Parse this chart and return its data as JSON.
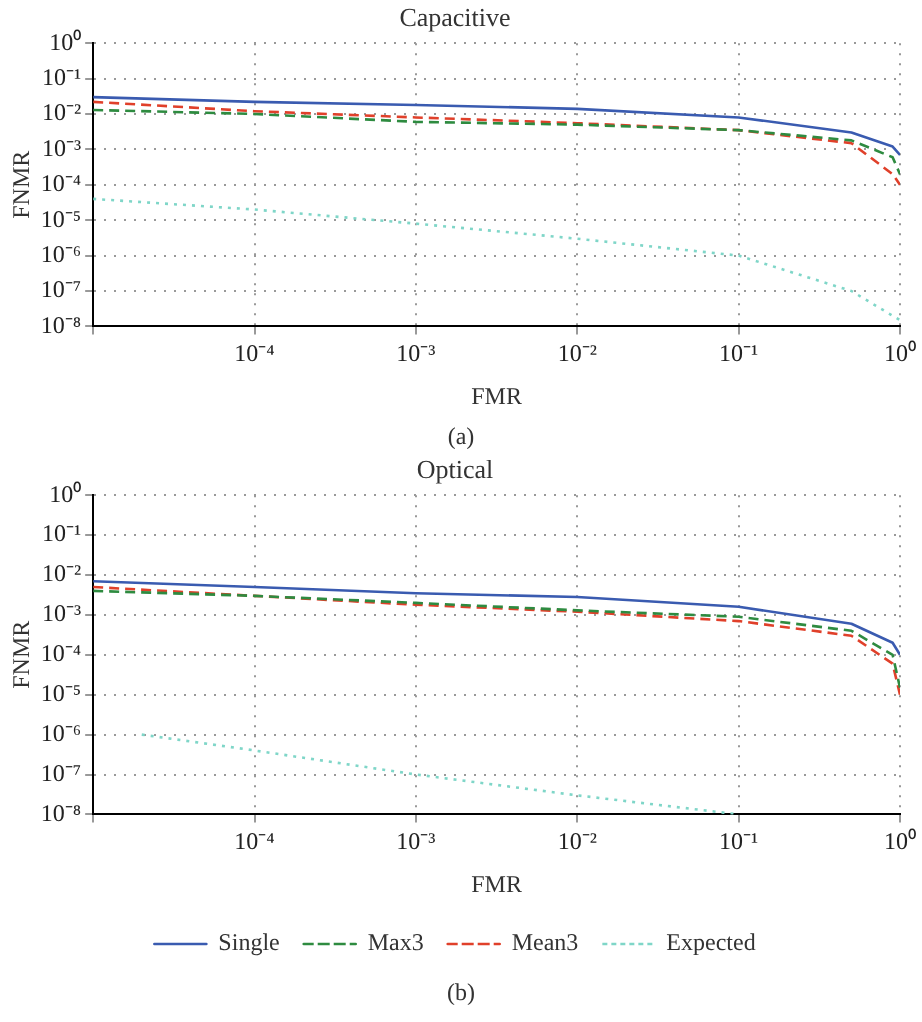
{
  "chart_data": [
    {
      "type": "line",
      "title": "Capacitive",
      "xlabel": "FMR",
      "ylabel": "FNMR",
      "log": "xy",
      "grid": true,
      "legend": false,
      "marker": "none",
      "annotations": [
        "(a)"
      ],
      "xlim": [
        1e-05,
        1
      ],
      "xticks": [
        {
          "value": 1e-05,
          "label": null
        },
        {
          "value": 0.0001,
          "label": "10⁻⁴"
        },
        {
          "value": 0.001,
          "label": "10⁻³"
        },
        {
          "value": 0.01,
          "label": "10⁻²"
        },
        {
          "value": 0.1,
          "label": "10⁻¹"
        },
        {
          "value": 1,
          "label": "10⁰"
        }
      ],
      "ylim": [
        1e-08,
        1
      ],
      "yticks": [
        {
          "value": 1e-08,
          "label": "10⁻⁸"
        },
        {
          "value": 1e-07,
          "label": "10⁻⁷"
        },
        {
          "value": 1e-06,
          "label": "10⁻⁶"
        },
        {
          "value": 1e-05,
          "label": "10⁻⁵"
        },
        {
          "value": 0.0001,
          "label": "10⁻⁴"
        },
        {
          "value": 0.001,
          "label": "10⁻³"
        },
        {
          "value": 0.01,
          "label": "10⁻²"
        },
        {
          "value": 0.1,
          "label": "10⁻¹"
        },
        {
          "value": 1,
          "label": "10⁰"
        }
      ],
      "series": [
        {
          "color": "#3a5bb0",
          "line_style": "solid",
          "x": [
            1e-05,
            0.0001,
            0.001,
            0.01,
            0.1,
            0.5,
            0.9,
            1
          ],
          "values": [
            0.03,
            0.022,
            0.018,
            0.014,
            0.008,
            0.003,
            0.0012,
            0.0007
          ]
        },
        {
          "color": "#2e8b40",
          "line_style": "dashed",
          "x": [
            1e-05,
            0.0001,
            0.001,
            0.01,
            0.1,
            0.5,
            0.9,
            1
          ],
          "values": [
            0.013,
            0.01,
            0.006,
            0.005,
            0.0035,
            0.0018,
            0.0006,
            0.0002
          ]
        },
        {
          "color": "#e0402a",
          "line_style": "dashed",
          "x": [
            1e-05,
            0.0001,
            0.001,
            0.01,
            0.1,
            0.5,
            0.9,
            1
          ],
          "values": [
            0.022,
            0.012,
            0.008,
            0.0055,
            0.0035,
            0.0015,
            0.0002,
            0.0001
          ]
        },
        {
          "color": "#7fd6c8",
          "line_style": "dotted",
          "x": [
            1e-05,
            0.0001,
            0.001,
            0.01,
            0.1,
            0.5,
            1
          ],
          "values": [
            4e-05,
            2e-05,
            8e-06,
            3e-06,
            1e-06,
            1e-07,
            1.5e-08
          ]
        }
      ]
    },
    {
      "type": "line",
      "title": "Optical",
      "xlabel": "FMR",
      "ylabel": "FNMR",
      "log": "xy",
      "grid": true,
      "legend": "bottom",
      "marker": "none",
      "annotations": [
        "(b)"
      ],
      "xlim": [
        1e-05,
        1
      ],
      "xticks": [
        {
          "value": 1e-05,
          "label": null
        },
        {
          "value": 0.0001,
          "label": "10⁻⁴"
        },
        {
          "value": 0.001,
          "label": "10⁻³"
        },
        {
          "value": 0.01,
          "label": "10⁻²"
        },
        {
          "value": 0.1,
          "label": "10⁻¹"
        },
        {
          "value": 1,
          "label": "10⁰"
        }
      ],
      "ylim": [
        1e-08,
        1
      ],
      "yticks": [
        {
          "value": 1e-08,
          "label": "10⁻⁸"
        },
        {
          "value": 1e-07,
          "label": "10⁻⁷"
        },
        {
          "value": 1e-06,
          "label": "10⁻⁶"
        },
        {
          "value": 1e-05,
          "label": "10⁻⁵"
        },
        {
          "value": 0.0001,
          "label": "10⁻⁴"
        },
        {
          "value": 0.001,
          "label": "10⁻³"
        },
        {
          "value": 0.01,
          "label": "10⁻²"
        },
        {
          "value": 0.1,
          "label": "10⁻¹"
        },
        {
          "value": 1,
          "label": "10⁰"
        }
      ],
      "series": [
        {
          "name": "Single",
          "color": "#3a5bb0",
          "line_style": "solid",
          "x": [
            1e-05,
            0.0001,
            0.001,
            0.01,
            0.1,
            0.5,
            0.9,
            1
          ],
          "values": [
            0.007,
            0.005,
            0.0035,
            0.0028,
            0.0016,
            0.0006,
            0.0002,
            0.0001
          ]
        },
        {
          "name": "Max3",
          "color": "#2e8b40",
          "line_style": "dashed",
          "x": [
            1e-05,
            0.0001,
            0.001,
            0.01,
            0.1,
            0.5,
            0.9,
            1
          ],
          "values": [
            0.004,
            0.003,
            0.002,
            0.0013,
            0.0009,
            0.0004,
            0.0001,
            1.5e-05
          ]
        },
        {
          "name": "Mean3",
          "color": "#e0402a",
          "line_style": "dashed",
          "x": [
            1e-05,
            0.0001,
            0.001,
            0.01,
            0.1,
            0.5,
            0.9,
            1
          ],
          "values": [
            0.005,
            0.003,
            0.0018,
            0.0012,
            0.0007,
            0.0003,
            6e-05,
            1e-05
          ]
        },
        {
          "name": "Expected",
          "color": "#7fd6c8",
          "line_style": "dotted",
          "x": [
            2e-05,
            0.0001,
            0.001,
            0.01,
            0.1
          ],
          "values": [
            1e-06,
            4e-07,
            1e-07,
            3e-08,
            1e-08
          ]
        }
      ]
    }
  ]
}
